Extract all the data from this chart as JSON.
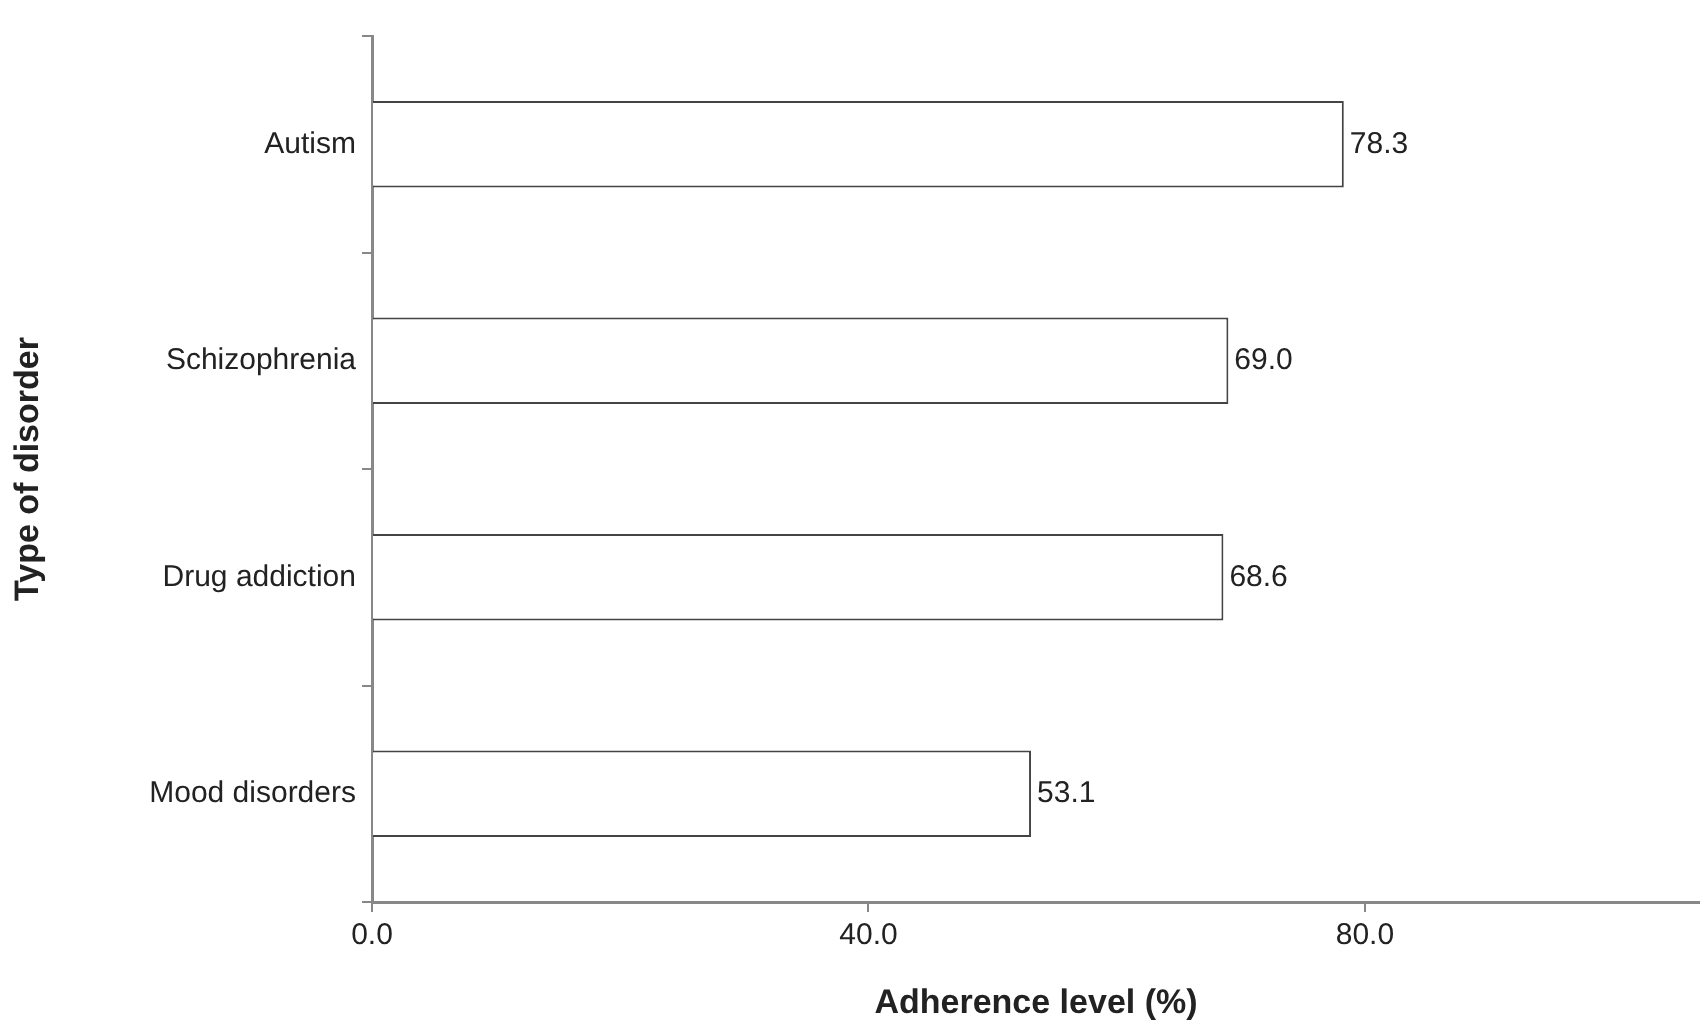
{
  "chart_data": {
    "type": "bar",
    "orientation": "horizontal",
    "xlabel": "Adherence level (%)",
    "ylabel": "Type of disorder",
    "categories": [
      "Autism",
      "Schizophrenia",
      "Drug addiction",
      "Mood disorders"
    ],
    "values": [
      78.3,
      69.0,
      68.6,
      53.1
    ],
    "value_labels": [
      "78.3",
      "69.0",
      "68.6",
      "53.1"
    ],
    "color": "#ffffff",
    "xlim": [
      0,
      107
    ],
    "xticks": [
      {
        "value": 0,
        "label": "0.0"
      },
      {
        "value": 40,
        "label": "40.0"
      },
      {
        "value": 80,
        "label": "80.0"
      }
    ],
    "grid": false,
    "legend": false
  }
}
